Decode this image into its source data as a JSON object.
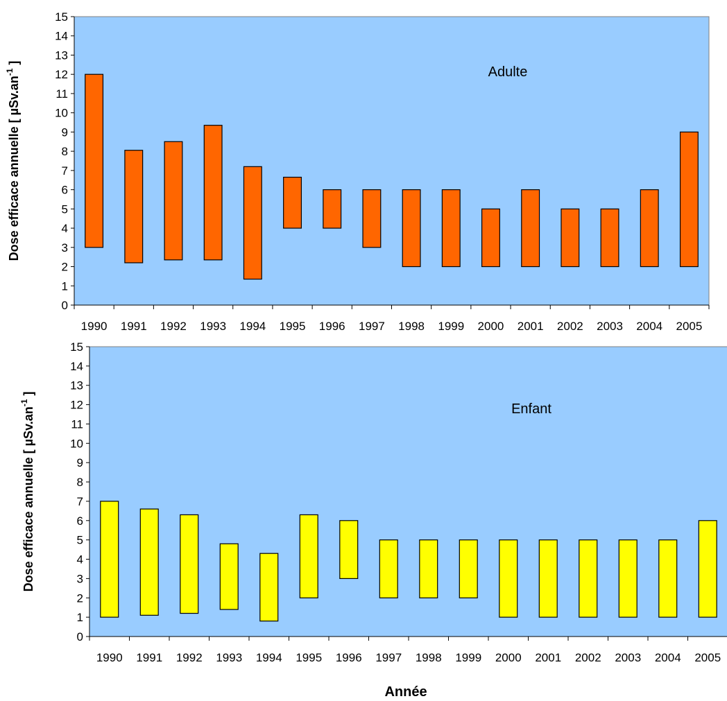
{
  "chart_data": [
    {
      "type": "bar",
      "subtype": "floating-range",
      "panel_label": "Adulte",
      "ylabel": "Dose efficace annuelle [ µSv.an",
      "ylabel_sup": "-1",
      "ylabel_end": " ]",
      "xlabel": "",
      "ylim": [
        0,
        15
      ],
      "ytick_step": 1,
      "categories": [
        "1990",
        "1991",
        "1992",
        "1993",
        "1994",
        "1995",
        "1996",
        "1997",
        "1998",
        "1999",
        "2000",
        "2001",
        "2002",
        "2003",
        "2004",
        "2005"
      ],
      "low": [
        3.0,
        2.2,
        2.35,
        2.35,
        1.35,
        4.0,
        4.0,
        3.0,
        2.0,
        2.0,
        2.0,
        2.0,
        2.0,
        2.0,
        2.0,
        2.0
      ],
      "high": [
        12.0,
        8.05,
        8.5,
        9.35,
        7.2,
        6.65,
        6.0,
        6.0,
        6.0,
        6.0,
        5.0,
        6.0,
        5.0,
        5.0,
        6.0,
        9.0
      ],
      "bar_color": "#FF6600",
      "plot_bg": "#99CCFF",
      "grid": false
    },
    {
      "type": "bar",
      "subtype": "floating-range",
      "panel_label": "Enfant",
      "ylabel": "Dose efficace annuelle [ µSv.an",
      "ylabel_sup": "-1",
      "ylabel_end": " ]",
      "xlabel": "Année",
      "ylim": [
        0,
        15
      ],
      "ytick_step": 1,
      "categories": [
        "1990",
        "1991",
        "1992",
        "1993",
        "1994",
        "1995",
        "1996",
        "1997",
        "1998",
        "1999",
        "2000",
        "2001",
        "2002",
        "2003",
        "2004",
        "2005"
      ],
      "low": [
        1.0,
        1.1,
        1.2,
        1.4,
        0.8,
        2.0,
        3.0,
        2.0,
        2.0,
        2.0,
        1.0,
        1.0,
        1.0,
        1.0,
        1.0,
        1.0
      ],
      "high": [
        7.0,
        6.6,
        6.3,
        4.8,
        4.3,
        6.3,
        6.0,
        5.0,
        5.0,
        5.0,
        5.0,
        5.0,
        5.0,
        5.0,
        5.0,
        6.0
      ],
      "bar_color": "#FFFF00",
      "plot_bg": "#99CCFF",
      "grid": false
    }
  ]
}
